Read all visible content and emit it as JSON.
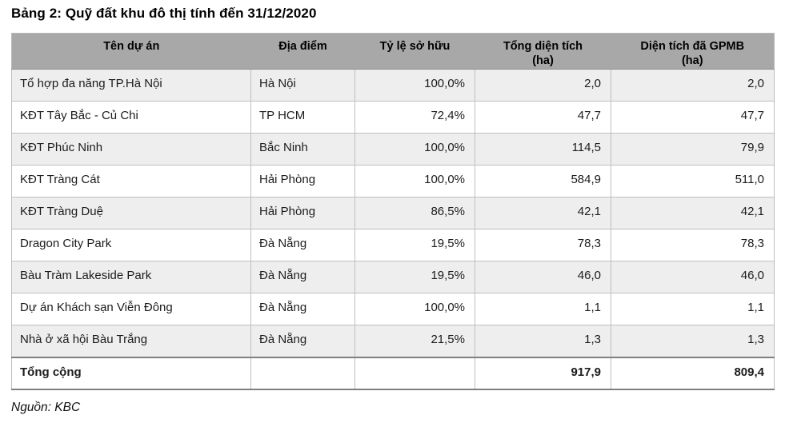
{
  "title": "Bảng 2: Quỹ đất khu đô thị tính đến 31/12/2020",
  "source": "Nguồn: KBC",
  "colors": {
    "header_bg": "#a8a8a8",
    "shaded_row_bg": "#eeeeee",
    "cell_border": "#bfbfbf",
    "heavy_rule": "#7f7f7f",
    "text": "#000000"
  },
  "table": {
    "columns": [
      {
        "label": "Tên dự án",
        "sub": ""
      },
      {
        "label": "Địa điểm",
        "sub": ""
      },
      {
        "label": "Tỷ lệ sở hữu",
        "sub": ""
      },
      {
        "label": "Tổng diện tích",
        "sub": "(ha)"
      },
      {
        "label": "Diện tích đã GPMB",
        "sub": "(ha)"
      }
    ],
    "rows": [
      [
        "Tổ hợp đa năng TP.Hà Nội",
        "Hà Nội",
        "100,0%",
        "2,0",
        "2,0"
      ],
      [
        "KĐT Tây Bắc - Củ Chi",
        "TP HCM",
        "72,4%",
        "47,7",
        "47,7"
      ],
      [
        "KĐT Phúc Ninh",
        "Bắc Ninh",
        "100,0%",
        "114,5",
        "79,9"
      ],
      [
        "KĐT Tràng Cát",
        "Hải Phòng",
        "100,0%",
        "584,9",
        "511,0"
      ],
      [
        "KĐT Tràng Duệ",
        "Hải Phòng",
        "86,5%",
        "42,1",
        "42,1"
      ],
      [
        "Dragon City Park",
        "Đà Nẵng",
        "19,5%",
        "78,3",
        "78,3"
      ],
      [
        "Bàu Tràm Lakeside Park",
        "Đà Nẵng",
        "19,5%",
        "46,0",
        "46,0"
      ],
      [
        "Dự án Khách sạn Viễn Đông",
        "Đà Nẵng",
        "100,0%",
        "1,1",
        "1,1"
      ],
      [
        "Nhà ở xã hội Bàu Trắng",
        "Đà Nẵng",
        "21,5%",
        "1,3",
        "1,3"
      ]
    ],
    "total": {
      "label": "Tổng cộng",
      "location": "",
      "ownership": "",
      "total_area": "917,9",
      "cleared_area": "809,4"
    }
  }
}
